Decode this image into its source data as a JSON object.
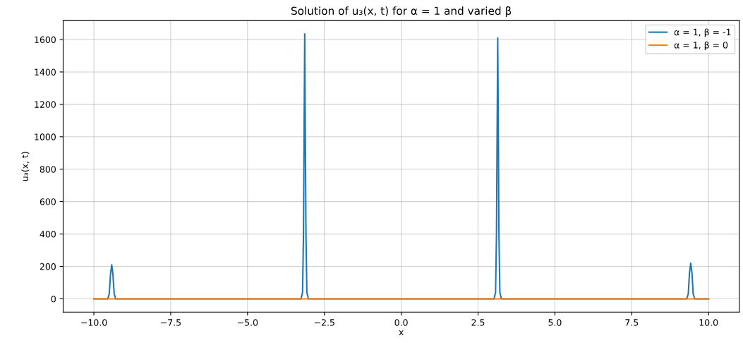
{
  "chart_data": {
    "type": "line",
    "title": "Solution of u₃(x, t) for α = 1 and varied β",
    "xlabel": "x",
    "ylabel": "u₃(x, t)",
    "series": [
      {
        "name": "α = 1, β = -1",
        "color": "#1f77b4",
        "x": [
          -10,
          -9.55,
          -9.5,
          -9.46,
          -9.42,
          -9.38,
          -9.34,
          -9.29,
          -3.26,
          -3.21,
          -3.18,
          -3.14,
          -3.1,
          -3.07,
          -3.02,
          3.02,
          3.07,
          3.1,
          3.14,
          3.18,
          3.21,
          3.26,
          9.29,
          9.34,
          9.38,
          9.42,
          9.46,
          9.5,
          9.55,
          10
        ],
        "values": [
          0,
          0,
          30,
          150,
          210,
          150,
          30,
          0,
          0,
          40,
          400,
          1635,
          400,
          40,
          0,
          0,
          40,
          400,
          1610,
          400,
          40,
          0,
          0,
          30,
          160,
          220,
          160,
          30,
          0,
          0
        ]
      },
      {
        "name": "α = 1, β = 0",
        "color": "#ff7f0e",
        "x": [
          -10,
          10
        ],
        "values": [
          0,
          0
        ]
      }
    ],
    "xlim": [
      -11,
      11
    ],
    "xticks": [
      {
        "value": -10,
        "label": "−10.0"
      },
      {
        "value": -7.5,
        "label": "−7.5"
      },
      {
        "value": -5,
        "label": "−5.0"
      },
      {
        "value": -2.5,
        "label": "−2.5"
      },
      {
        "value": 0,
        "label": "0.0"
      },
      {
        "value": 2.5,
        "label": "2.5"
      },
      {
        "value": 5,
        "label": "5.0"
      },
      {
        "value": 7.5,
        "label": "7.5"
      },
      {
        "value": 10,
        "label": "10.0"
      }
    ],
    "ylim": [
      -82,
      1717
    ],
    "yticks": [
      0,
      200,
      400,
      600,
      800,
      1000,
      1200,
      1400,
      1600
    ],
    "grid": true,
    "legend": "top right",
    "marker": "none",
    "line_style": "solid"
  }
}
